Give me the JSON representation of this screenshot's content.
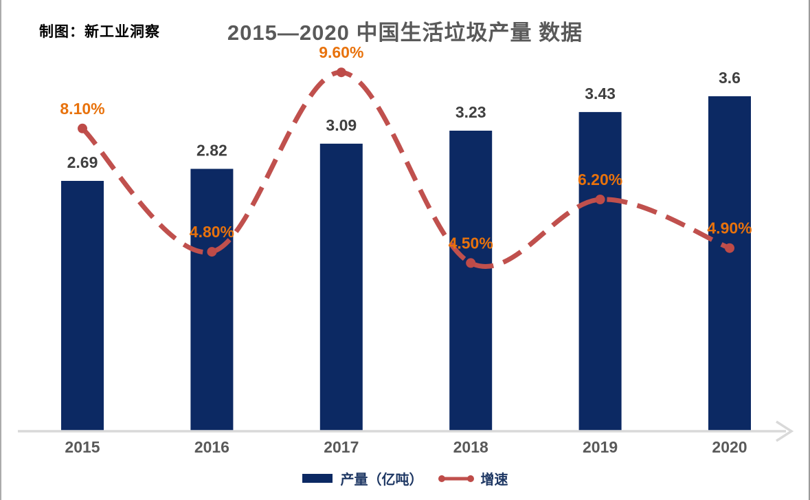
{
  "header": {
    "credit": "制图：新工业洞察",
    "title": "2015—2020 中国生活垃圾产量 数据"
  },
  "chart_data": {
    "type": "combo-bar-line",
    "title": "2015—2020 中国生活垃圾产量 数据",
    "categories": [
      "2015",
      "2016",
      "2017",
      "2018",
      "2019",
      "2020"
    ],
    "series": [
      {
        "name": "产量（亿吨）",
        "type": "bar",
        "values": [
          2.69,
          2.82,
          3.09,
          3.23,
          3.43,
          3.6
        ],
        "labels": [
          "2.69",
          "2.82",
          "3.09",
          "3.23",
          "3.43",
          "3.6"
        ],
        "axis": "left"
      },
      {
        "name": "增速",
        "type": "line",
        "line_style": "dashed-smooth",
        "values": [
          8.1,
          4.8,
          9.6,
          4.5,
          6.2,
          4.9
        ],
        "labels": [
          "8.10%",
          "4.80%",
          "9.60%",
          "4.50%",
          "6.20%",
          "4.90%"
        ],
        "axis": "right"
      }
    ],
    "y_left": {
      "min": 0,
      "unit": "亿吨",
      "ticks_visible": false
    },
    "y_right": {
      "min": 0,
      "unit": "%",
      "ticks_visible": false
    },
    "grid": false,
    "legend_position": "bottom",
    "x_axis_arrow": true
  },
  "colors": {
    "bar": "#0C2963",
    "line": "#C0504D",
    "point": "#BE4B48",
    "pct_label": "#E8720C",
    "value_label": "#3F3F3F",
    "year_label": "#595959",
    "axis": "#D9D9D9",
    "title": "#595959",
    "legend_text": "#1F3864",
    "credit": "#000000"
  }
}
